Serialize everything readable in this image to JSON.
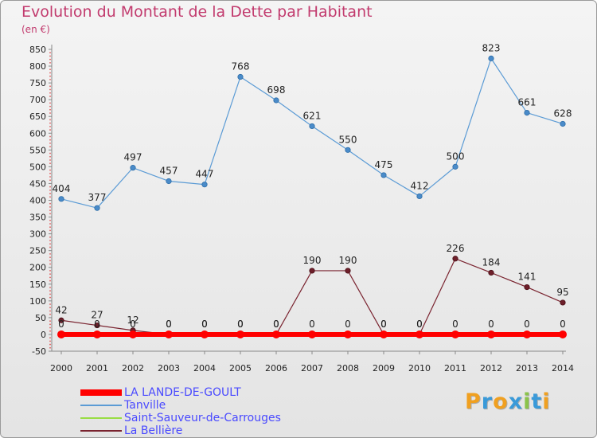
{
  "chart_data": {
    "type": "line",
    "title": "Evolution du Montant de la Dette par Habitant",
    "subtitle": "(en €)",
    "x": [
      "2000",
      "2001",
      "2002",
      "2003",
      "2004",
      "2005",
      "2006",
      "2007",
      "2008",
      "2009",
      "2010",
      "2011",
      "2012",
      "2013",
      "2014"
    ],
    "yticks": [
      -50,
      0,
      50,
      100,
      150,
      200,
      250,
      300,
      350,
      400,
      450,
      500,
      550,
      600,
      650,
      700,
      750,
      800,
      850
    ],
    "ylim": [
      -50,
      850
    ],
    "grid": false,
    "legend_position": "bottom-left",
    "series": [
      {
        "name": "LA LANDE-DE-GOULT",
        "color": "#ff0000",
        "values": [
          0,
          0,
          0,
          0,
          0,
          0,
          0,
          0,
          0,
          0,
          0,
          0,
          0,
          0,
          0
        ],
        "labels": false
      },
      {
        "name": "Tanville",
        "color": "#5b9bd5",
        "values": [
          404,
          377,
          497,
          457,
          447,
          768,
          698,
          621,
          550,
          475,
          412,
          500,
          823,
          661,
          628
        ],
        "labels": true
      },
      {
        "name": "Saint-Sauveur-de-Carrouges",
        "color": "#99dd44",
        "values": [
          0,
          0,
          0,
          0,
          0,
          0,
          0,
          0,
          0,
          0,
          0,
          0,
          0,
          0,
          0
        ],
        "labels": true
      },
      {
        "name": "La Bellière",
        "color": "#7a2430",
        "values": [
          42,
          27,
          12,
          0,
          0,
          0,
          0,
          190,
          190,
          0,
          0,
          226,
          184,
          141,
          95
        ],
        "labels": true
      }
    ]
  },
  "logo": {
    "letters": [
      "P",
      "r",
      "o",
      "x",
      "i",
      "t",
      "i"
    ],
    "colors": [
      "#f0a020",
      "#3a9ad9",
      "#f0a020",
      "#3a9ad9",
      "#8bc34a",
      "#3a9ad9",
      "#f0a020"
    ]
  }
}
